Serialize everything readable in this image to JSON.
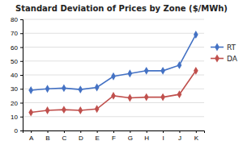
{
  "chart_data": {
    "type": "line",
    "title": "Standard Deviation of Prices by Zone ($/MWh)",
    "categories": [
      "A",
      "B",
      "C",
      "D",
      "E",
      "F",
      "G",
      "H",
      "I",
      "J",
      "K"
    ],
    "series": [
      {
        "name": "RT",
        "color": "#4472C4",
        "marker": "diamond",
        "values": [
          29,
          30,
          30.5,
          29.5,
          31,
          39,
          41,
          43,
          43,
          47,
          69
        ]
      },
      {
        "name": "DA",
        "color": "#C0504D",
        "marker": "diamond",
        "values": [
          13,
          14.5,
          15,
          14.5,
          15.5,
          25,
          23.5,
          24,
          24,
          26,
          43
        ]
      }
    ],
    "ylim": [
      0,
      80
    ],
    "yticks": [
      0,
      10,
      20,
      30,
      40,
      50,
      60,
      70,
      80
    ],
    "grid": true,
    "legend": "right"
  }
}
